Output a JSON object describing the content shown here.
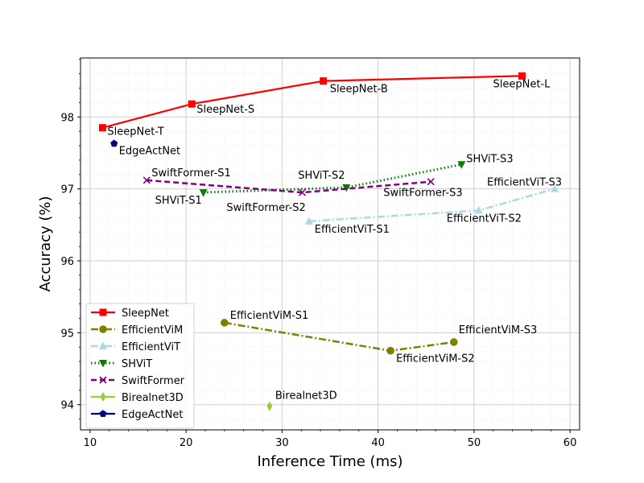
{
  "chart_data": {
    "type": "line",
    "xlabel": "Inference Time (ms)",
    "ylabel": "Accuracy (%)",
    "xlim": [
      9,
      61
    ],
    "ylim": [
      93.65,
      98.82
    ],
    "xticks": [
      10,
      20,
      30,
      40,
      50,
      60
    ],
    "yticks": [
      94,
      95,
      96,
      97,
      98
    ],
    "grid": true,
    "legend_position": "lower-left",
    "series": [
      {
        "name": "SleepNet",
        "color": "#ff0000",
        "marker": "square",
        "dash": "solid",
        "points": [
          {
            "x": 11.3,
            "y": 97.85,
            "label": "SleepNet-T"
          },
          {
            "x": 20.6,
            "y": 98.18,
            "label": "SleepNet-S"
          },
          {
            "x": 34.3,
            "y": 98.5,
            "label": "SleepNet-B"
          },
          {
            "x": 55.0,
            "y": 98.57,
            "label": "SleepNet-L"
          }
        ]
      },
      {
        "name": "EfficientViM",
        "color": "#808000",
        "marker": "circle",
        "dash": "dashdot",
        "points": [
          {
            "x": 24.0,
            "y": 95.14,
            "label": "EfficientViM-S1"
          },
          {
            "x": 41.3,
            "y": 94.75,
            "label": "EfficientViM-S2"
          },
          {
            "x": 47.9,
            "y": 94.87,
            "label": "EfficientViM-S3"
          }
        ]
      },
      {
        "name": "EfficientViT",
        "color": "#add8e6",
        "marker": "triangle-up",
        "dash": "dashdot",
        "points": [
          {
            "x": 32.8,
            "y": 96.55,
            "label": "EfficientViT-S1"
          },
          {
            "x": 50.5,
            "y": 96.7,
            "label": "EfficientViT-S2"
          },
          {
            "x": 58.4,
            "y": 97.0,
            "label": "EfficientViT-S3"
          }
        ]
      },
      {
        "name": "SHViT",
        "color": "#008000",
        "marker": "triangle-down",
        "dash": "dotted",
        "points": [
          {
            "x": 21.8,
            "y": 96.95,
            "label": "SHViT-S1"
          },
          {
            "x": 36.7,
            "y": 97.02,
            "label": "SHViT-S2"
          },
          {
            "x": 48.7,
            "y": 97.34,
            "label": "SHViT-S3"
          }
        ]
      },
      {
        "name": "SwiftFormer",
        "color": "#800080",
        "marker": "x",
        "dash": "dashed",
        "points": [
          {
            "x": 15.9,
            "y": 97.12,
            "label": "SwiftFormer-S1"
          },
          {
            "x": 32.1,
            "y": 96.95,
            "label": "SwiftFormer-S2"
          },
          {
            "x": 45.5,
            "y": 97.1,
            "label": "SwiftFormer-S3"
          }
        ]
      },
      {
        "name": "Birealnet3D",
        "color": "#9acd32",
        "marker": "thin-diamond",
        "dash": "solid",
        "points": [
          {
            "x": 28.7,
            "y": 93.98,
            "label": "Birealnet3D"
          }
        ]
      },
      {
        "name": "EdgeActNet",
        "color": "#000080",
        "marker": "pentagon",
        "dash": "solid",
        "points": [
          {
            "x": 12.5,
            "y": 97.63,
            "label": "EdgeActNet"
          }
        ]
      }
    ]
  }
}
